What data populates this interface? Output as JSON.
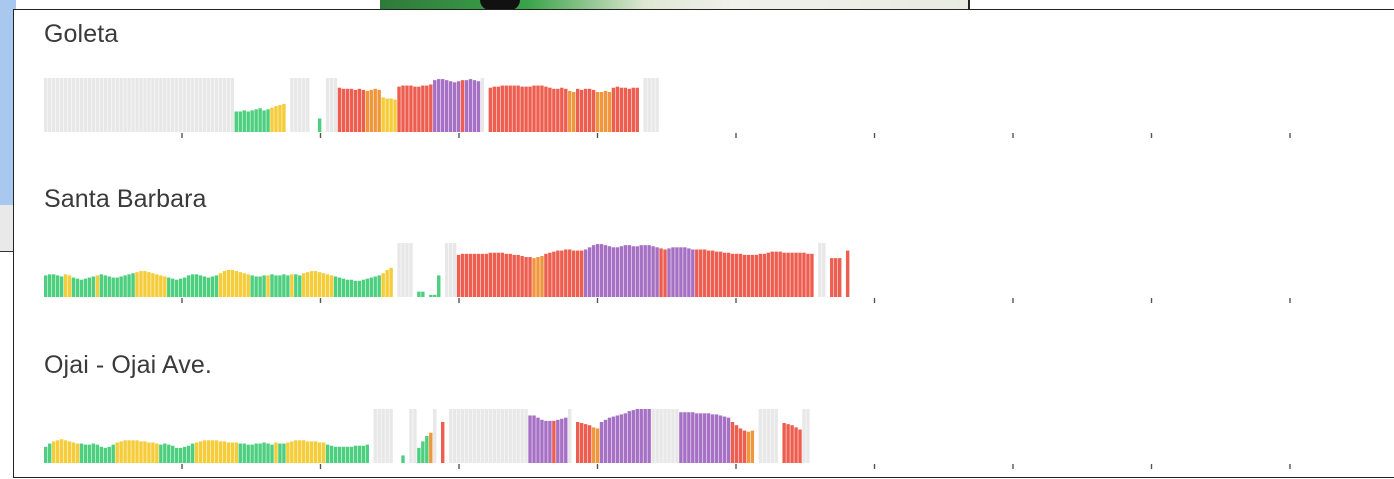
{
  "colors": {
    "good": "#4ecf80",
    "moderate": "#f5cc3a",
    "usg": "#f0963c",
    "unhealthy": "#ee5e50",
    "very_unhealthy": "#a670c4",
    "no_data": "#e8e8e8",
    "tick": "#555555"
  },
  "chart_data": [
    {
      "type": "bar",
      "title": "Goleta",
      "segments": [
        {
          "n": 48,
          "level": "no_data",
          "value": 1.0
        },
        {
          "n": 9,
          "level": "good",
          "value": [
            0.38,
            0.38,
            0.4,
            0.38,
            0.4,
            0.42,
            0.44,
            0.4,
            0.42
          ]
        },
        {
          "n": 4,
          "level": "moderate",
          "value": [
            0.45,
            0.48,
            0.5,
            0.52
          ]
        },
        {
          "n": 1,
          "level": "gap"
        },
        {
          "n": 5,
          "level": "no_data",
          "value": 1.0
        },
        {
          "n": 2,
          "level": "gap"
        },
        {
          "n": 1,
          "level": "good",
          "value": 0.25
        },
        {
          "n": 1,
          "level": "gap"
        },
        {
          "n": 3,
          "level": "no_data",
          "value": 1.0
        },
        {
          "n": 7,
          "level": "unhealthy",
          "value": [
            0.82,
            0.8,
            0.8,
            0.8,
            0.78,
            0.8,
            0.78
          ]
        },
        {
          "n": 4,
          "level": "usg",
          "value": [
            0.76,
            0.78,
            0.8,
            0.78
          ]
        },
        {
          "n": 2,
          "level": "moderate",
          "value": [
            0.64,
            0.62
          ]
        },
        {
          "n": 2,
          "level": "moderate",
          "value": [
            0.62,
            0.6
          ]
        },
        {
          "n": 9,
          "level": "unhealthy",
          "value": [
            0.84,
            0.86,
            0.86,
            0.86,
            0.84,
            0.84,
            0.86,
            0.86,
            0.88
          ]
        },
        {
          "n": 7,
          "level": "very_unhealthy",
          "value": [
            0.96,
            0.98,
            0.98,
            0.96,
            0.94,
            0.92,
            0.94
          ]
        },
        {
          "n": 1,
          "level": "unhealthy",
          "value": 0.96
        },
        {
          "n": 4,
          "level": "very_unhealthy",
          "value": [
            0.96,
            0.98,
            0.96,
            0.94
          ]
        },
        {
          "n": 1,
          "level": "no_data",
          "value": 1.0
        },
        {
          "n": 1,
          "level": "gap"
        },
        {
          "n": 13,
          "level": "unhealthy",
          "value": [
            0.82,
            0.84,
            0.84,
            0.86,
            0.86,
            0.86,
            0.86,
            0.86,
            0.84,
            0.84,
            0.84,
            0.86,
            0.86
          ]
        },
        {
          "n": 7,
          "level": "unhealthy",
          "value": [
            0.86,
            0.84,
            0.82,
            0.8,
            0.8,
            0.82,
            0.8
          ]
        },
        {
          "n": 2,
          "level": "usg",
          "value": [
            0.76,
            0.74
          ]
        },
        {
          "n": 5,
          "level": "unhealthy",
          "value": [
            0.8,
            0.78,
            0.8,
            0.8,
            0.78
          ]
        },
        {
          "n": 4,
          "level": "usg",
          "value": [
            0.74,
            0.74,
            0.76,
            0.74
          ]
        },
        {
          "n": 7,
          "level": "unhealthy",
          "value": [
            0.82,
            0.84,
            0.82,
            0.82,
            0.8,
            0.82,
            0.82
          ]
        },
        {
          "n": 1,
          "level": "gap"
        },
        {
          "n": 4,
          "level": "no_data",
          "value": 1.0
        }
      ]
    },
    {
      "type": "bar",
      "title": "Santa Barbara",
      "segments": [
        {
          "n": 5,
          "level": "good",
          "value": [
            0.4,
            0.42,
            0.42,
            0.4,
            0.38
          ]
        },
        {
          "n": 2,
          "level": "moderate",
          "value": [
            0.42,
            0.4
          ]
        },
        {
          "n": 6,
          "level": "good",
          "value": [
            0.36,
            0.34,
            0.32,
            0.34,
            0.36,
            0.38
          ]
        },
        {
          "n": 1,
          "level": "moderate",
          "value": 0.4
        },
        {
          "n": 9,
          "level": "good",
          "value": [
            0.42,
            0.4,
            0.38,
            0.36,
            0.36,
            0.38,
            0.4,
            0.42,
            0.44
          ]
        },
        {
          "n": 8,
          "level": "moderate",
          "value": [
            0.46,
            0.48,
            0.48,
            0.46,
            0.44,
            0.42,
            0.4,
            0.38
          ]
        },
        {
          "n": 13,
          "level": "good",
          "value": [
            0.36,
            0.34,
            0.32,
            0.34,
            0.36,
            0.4,
            0.42,
            0.42,
            0.4,
            0.38,
            0.36,
            0.38,
            0.4
          ]
        },
        {
          "n": 8,
          "level": "moderate",
          "value": [
            0.44,
            0.48,
            0.5,
            0.5,
            0.48,
            0.46,
            0.44,
            0.42
          ]
        },
        {
          "n": 4,
          "level": "good",
          "value": [
            0.4,
            0.38,
            0.38,
            0.4
          ]
        },
        {
          "n": 1,
          "level": "moderate",
          "value": 0.4
        },
        {
          "n": 5,
          "level": "good",
          "value": [
            0.42,
            0.4,
            0.4,
            0.42,
            0.4
          ]
        },
        {
          "n": 1,
          "level": "moderate",
          "value": 0.42
        },
        {
          "n": 2,
          "level": "good",
          "value": [
            0.42,
            0.4
          ]
        },
        {
          "n": 8,
          "level": "moderate",
          "value": [
            0.44,
            0.46,
            0.48,
            0.48,
            0.46,
            0.44,
            0.42,
            0.4
          ]
        },
        {
          "n": 12,
          "level": "good",
          "value": [
            0.38,
            0.36,
            0.34,
            0.32,
            0.32,
            0.3,
            0.3,
            0.32,
            0.34,
            0.36,
            0.38,
            0.4
          ]
        },
        {
          "n": 3,
          "level": "moderate",
          "value": [
            0.44,
            0.5,
            0.54
          ]
        },
        {
          "n": 1,
          "level": "gap"
        },
        {
          "n": 4,
          "level": "no_data",
          "value": 1.0
        },
        {
          "n": 1,
          "level": "gap"
        },
        {
          "n": 1,
          "level": "good",
          "value": 0.1
        },
        {
          "n": 1,
          "level": "good",
          "value": 0.1
        },
        {
          "n": 1,
          "level": "gap"
        },
        {
          "n": 2,
          "level": "good",
          "value": [
            0.04,
            0.04
          ]
        },
        {
          "n": 1,
          "level": "good",
          "value": 0.4
        },
        {
          "n": 1,
          "level": "gap"
        },
        {
          "n": 3,
          "level": "no_data",
          "value": 1.0
        },
        {
          "n": 19,
          "level": "unhealthy",
          "value": [
            0.78,
            0.8,
            0.8,
            0.8,
            0.8,
            0.8,
            0.8,
            0.8,
            0.82,
            0.82,
            0.82,
            0.82,
            0.8,
            0.8,
            0.78,
            0.78,
            0.76,
            0.74,
            0.74
          ]
        },
        {
          "n": 3,
          "level": "usg",
          "value": [
            0.72,
            0.74,
            0.76
          ]
        },
        {
          "n": 10,
          "level": "unhealthy",
          "value": [
            0.8,
            0.82,
            0.84,
            0.86,
            0.86,
            0.88,
            0.88,
            0.86,
            0.86,
            0.86
          ]
        },
        {
          "n": 19,
          "level": "very_unhealthy",
          "value": [
            0.88,
            0.92,
            0.96,
            0.98,
            0.98,
            0.96,
            0.94,
            0.92,
            0.92,
            0.94,
            0.96,
            0.96,
            0.94,
            0.94,
            0.96,
            0.96,
            0.96,
            0.94,
            0.92
          ]
        },
        {
          "n": 2,
          "level": "unhealthy",
          "value": [
            0.9,
            0.88
          ]
        },
        {
          "n": 7,
          "level": "very_unhealthy",
          "value": [
            0.9,
            0.92,
            0.92,
            0.92,
            0.92,
            0.9,
            0.88
          ]
        },
        {
          "n": 30,
          "level": "unhealthy",
          "value": [
            0.88,
            0.88,
            0.88,
            0.86,
            0.86,
            0.84,
            0.84,
            0.82,
            0.82,
            0.8,
            0.8,
            0.8,
            0.78,
            0.78,
            0.78,
            0.78,
            0.8,
            0.8,
            0.82,
            0.84,
            0.84,
            0.84,
            0.82,
            0.82,
            0.82,
            0.82,
            0.82,
            0.82,
            0.8,
            0.8
          ]
        },
        {
          "n": 1,
          "level": "gap"
        },
        {
          "n": 2,
          "level": "no_data",
          "value": 1.0
        },
        {
          "n": 1,
          "level": "gap"
        },
        {
          "n": 3,
          "level": "unhealthy",
          "value": [
            0.72,
            0.72,
            0.72
          ]
        },
        {
          "n": 1,
          "level": "gap"
        },
        {
          "n": 1,
          "level": "unhealthy",
          "value": 0.86
        }
      ]
    },
    {
      "type": "bar",
      "title": "Ojai - Ojai Ave.",
      "segments": [
        {
          "n": 2,
          "level": "good",
          "value": [
            0.3,
            0.36
          ]
        },
        {
          "n": 7,
          "level": "moderate",
          "value": [
            0.4,
            0.42,
            0.44,
            0.42,
            0.4,
            0.38,
            0.36
          ]
        },
        {
          "n": 9,
          "level": "good",
          "value": [
            0.36,
            0.34,
            0.34,
            0.36,
            0.34,
            0.3,
            0.28,
            0.3,
            0.34
          ]
        },
        {
          "n": 11,
          "level": "moderate",
          "value": [
            0.38,
            0.4,
            0.42,
            0.42,
            0.42,
            0.42,
            0.4,
            0.4,
            0.38,
            0.38,
            0.36
          ]
        },
        {
          "n": 1,
          "level": "good",
          "value": 0.34
        },
        {
          "n": 8,
          "level": "good",
          "value": [
            0.36,
            0.34,
            0.32,
            0.28,
            0.28,
            0.3,
            0.32,
            0.36
          ]
        },
        {
          "n": 11,
          "level": "moderate",
          "value": [
            0.38,
            0.4,
            0.42,
            0.42,
            0.42,
            0.42,
            0.4,
            0.4,
            0.38,
            0.38,
            0.38
          ]
        },
        {
          "n": 9,
          "level": "good",
          "value": [
            0.36,
            0.36,
            0.34,
            0.34,
            0.36,
            0.36,
            0.38,
            0.36,
            0.34
          ]
        },
        {
          "n": 1,
          "level": "moderate",
          "value": 0.38
        },
        {
          "n": 2,
          "level": "good",
          "value": [
            0.36,
            0.36
          ]
        },
        {
          "n": 10,
          "level": "moderate",
          "value": [
            0.38,
            0.4,
            0.42,
            0.42,
            0.42,
            0.4,
            0.4,
            0.4,
            0.38,
            0.38
          ]
        },
        {
          "n": 11,
          "level": "good",
          "value": [
            0.34,
            0.32,
            0.3,
            0.3,
            0.3,
            0.3,
            0.3,
            0.32,
            0.32,
            0.32,
            0.34
          ]
        },
        {
          "n": 1,
          "level": "gap"
        },
        {
          "n": 5,
          "level": "no_data",
          "value": 1.0
        },
        {
          "n": 2,
          "level": "gap"
        },
        {
          "n": 1,
          "level": "good",
          "value": 0.14
        },
        {
          "n": 1,
          "level": "gap"
        },
        {
          "n": 2,
          "level": "no_data",
          "value": 1.0
        },
        {
          "n": 1,
          "level": "good",
          "value": 0.28
        },
        {
          "n": 2,
          "level": "good",
          "value": [
            0.4,
            0.5
          ]
        },
        {
          "n": 1,
          "level": "usg",
          "value": 0.56
        },
        {
          "n": 1,
          "level": "no_data",
          "value": 1.0
        },
        {
          "n": 1,
          "level": "gap"
        },
        {
          "n": 1,
          "level": "unhealthy",
          "value": 0.76
        },
        {
          "n": 1,
          "level": "gap"
        },
        {
          "n": 20,
          "level": "no_data",
          "value": 1.0
        },
        {
          "n": 6,
          "level": "very_unhealthy",
          "value": [
            0.88,
            0.88,
            0.84,
            0.8,
            0.78,
            0.78
          ]
        },
        {
          "n": 1,
          "level": "unhealthy",
          "value": 0.78
        },
        {
          "n": 3,
          "level": "very_unhealthy",
          "value": [
            0.8,
            0.82,
            0.84
          ]
        },
        {
          "n": 1,
          "level": "no_data",
          "value": 1.0
        },
        {
          "n": 1,
          "level": "gap"
        },
        {
          "n": 4,
          "level": "unhealthy",
          "value": [
            0.76,
            0.74,
            0.72,
            0.7
          ]
        },
        {
          "n": 2,
          "level": "usg",
          "value": [
            0.66,
            0.64
          ]
        },
        {
          "n": 13,
          "level": "very_unhealthy",
          "value": [
            0.76,
            0.8,
            0.84,
            0.86,
            0.88,
            0.9,
            0.92,
            0.96,
            0.98,
            1.0,
            1.0,
            1.0,
            1.0
          ]
        },
        {
          "n": 7,
          "level": "no_data",
          "value": 1.0
        },
        {
          "n": 13,
          "level": "very_unhealthy",
          "value": [
            0.94,
            0.94,
            0.94,
            0.94,
            0.92,
            0.92,
            0.92,
            0.92,
            0.9,
            0.9,
            0.88,
            0.86,
            0.84
          ]
        },
        {
          "n": 4,
          "level": "unhealthy",
          "value": [
            0.76,
            0.7,
            0.64,
            0.6
          ]
        },
        {
          "n": 2,
          "level": "usg",
          "value": [
            0.58,
            0.6
          ]
        },
        {
          "n": 1,
          "level": "gap"
        },
        {
          "n": 5,
          "level": "no_data",
          "value": 1.0
        },
        {
          "n": 1,
          "level": "gap"
        },
        {
          "n": 5,
          "level": "unhealthy",
          "value": [
            0.74,
            0.72,
            0.7,
            0.66,
            0.62
          ]
        },
        {
          "n": 2,
          "level": "no_data",
          "value": 1.0
        }
      ]
    }
  ]
}
